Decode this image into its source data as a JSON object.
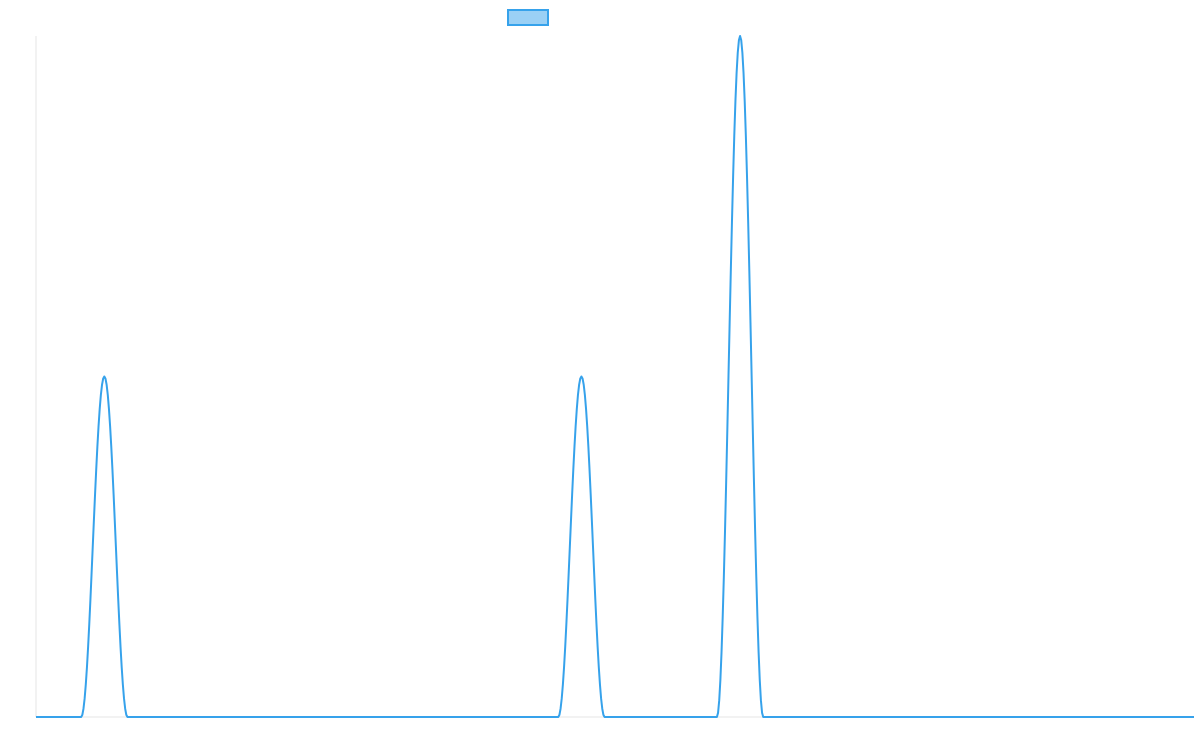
{
  "chart_data": {
    "type": "line",
    "title": "",
    "xlabel": "",
    "ylabel": "",
    "x_range": [
      0,
      1000
    ],
    "y_range": [
      0,
      1
    ],
    "grid": false,
    "legend_position": "top-center",
    "series": [
      {
        "name": "",
        "color": "#36a2eb",
        "fill_color": "#9ad0f5",
        "peaks": [
          {
            "center": 59,
            "height": 0.5,
            "half_width": 20
          },
          {
            "center": 471,
            "height": 0.5,
            "half_width": 20
          },
          {
            "center": 608,
            "height": 1.0,
            "half_width": 20
          }
        ],
        "sample_step": 1
      }
    ]
  }
}
